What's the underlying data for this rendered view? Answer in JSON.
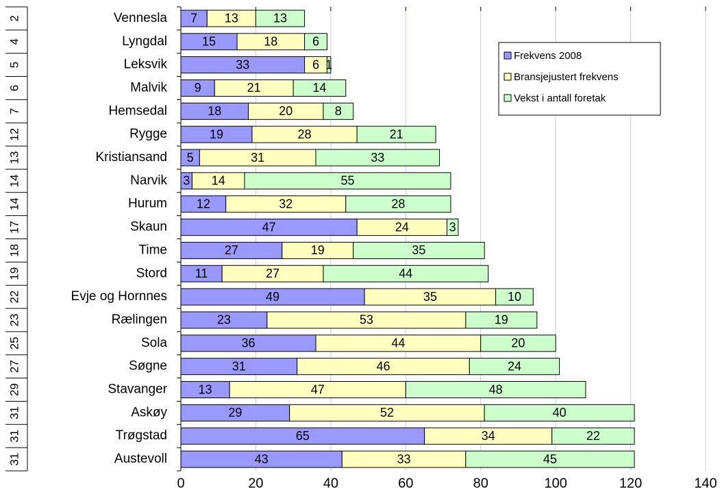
{
  "chart_data": {
    "type": "bar",
    "orientation": "horizontal",
    "stacked": true,
    "title": "",
    "xlabel": "",
    "ylabel": "",
    "xlim": [
      0,
      140
    ],
    "x_ticks": [
      0,
      20,
      40,
      60,
      80,
      100,
      120,
      140
    ],
    "grid": "vertical",
    "legend_position": "top-right",
    "categories": [
      "Vennesla",
      "Lyngdal",
      "Leksvik",
      "Malvik",
      "Hemsedal",
      "Rygge",
      "Kristiansand",
      "Narvik",
      "Hurum",
      "Skaun",
      "Time",
      "Stord",
      "Evje og Hornnes",
      "Rælingen",
      "Sola",
      "Søgne",
      "Stavanger",
      "Askøy",
      "Trøgstad",
      "Austevoll"
    ],
    "ranks": [
      "2",
      "4",
      "5",
      "6",
      "7",
      "12",
      "13",
      "14",
      "14",
      "17",
      "18",
      "19",
      "22",
      "23",
      "25",
      "27",
      "29",
      "31",
      "31",
      "31"
    ],
    "series": [
      {
        "name": "Frekvens 2008",
        "color": "#9999ff",
        "values": [
          7,
          15,
          33,
          9,
          18,
          19,
          5,
          3,
          12,
          47,
          27,
          11,
          49,
          23,
          36,
          31,
          13,
          29,
          65,
          43
        ]
      },
      {
        "name": "Bransjejustert frekvens",
        "color": "#ffffc0",
        "values": [
          13,
          18,
          6,
          21,
          20,
          28,
          31,
          14,
          32,
          24,
          19,
          27,
          35,
          53,
          44,
          46,
          47,
          52,
          34,
          33
        ]
      },
      {
        "name": "Vekst i antall foretak",
        "color": "#ccffcc",
        "values": [
          13,
          6,
          1,
          14,
          8,
          21,
          33,
          55,
          28,
          3,
          35,
          44,
          10,
          19,
          20,
          24,
          48,
          40,
          22,
          45
        ]
      }
    ]
  }
}
